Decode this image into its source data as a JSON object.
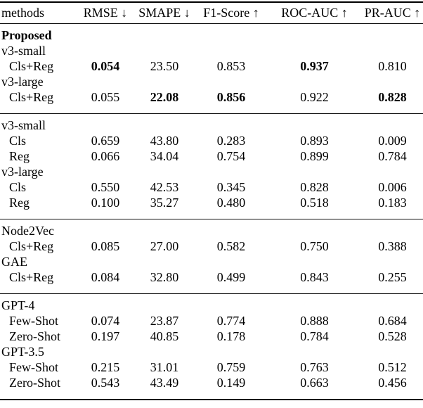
{
  "table": {
    "headers": [
      "methods",
      "RMSE ↓",
      "SMAPE ↓",
      "F1-Score ↑",
      "ROC-AUC ↑",
      "PR-AUC ↑"
    ],
    "sections": [
      {
        "rows": [
          {
            "label": "Proposed",
            "indent": false,
            "bold_label": true,
            "values": [],
            "bold": []
          },
          {
            "label": "v3-small",
            "indent": false,
            "bold_label": false,
            "values": [],
            "bold": []
          },
          {
            "label": "Cls+Reg",
            "indent": true,
            "bold_label": false,
            "values": [
              "0.054",
              "23.50",
              "0.853",
              "0.937",
              "0.810"
            ],
            "bold": [
              0,
              3
            ]
          },
          {
            "label": "v3-large",
            "indent": false,
            "bold_label": false,
            "values": [],
            "bold": []
          },
          {
            "label": "Cls+Reg",
            "indent": true,
            "bold_label": false,
            "values": [
              "0.055",
              "22.08",
              "0.856",
              "0.922",
              "0.828"
            ],
            "bold": [
              1,
              2,
              4
            ]
          }
        ]
      },
      {
        "rows": [
          {
            "label": "v3-small",
            "indent": false,
            "bold_label": false,
            "values": [],
            "bold": []
          },
          {
            "label": "Cls",
            "indent": true,
            "bold_label": false,
            "values": [
              "0.659",
              "43.80",
              "0.283",
              "0.893",
              "0.009"
            ],
            "bold": []
          },
          {
            "label": "Reg",
            "indent": true,
            "bold_label": false,
            "values": [
              "0.066",
              "34.04",
              "0.754",
              "0.899",
              "0.784"
            ],
            "bold": []
          },
          {
            "label": "v3-large",
            "indent": false,
            "bold_label": false,
            "values": [],
            "bold": []
          },
          {
            "label": "Cls",
            "indent": true,
            "bold_label": false,
            "values": [
              "0.550",
              "42.53",
              "0.345",
              "0.828",
              "0.006"
            ],
            "bold": []
          },
          {
            "label": "Reg",
            "indent": true,
            "bold_label": false,
            "values": [
              "0.100",
              "35.27",
              "0.480",
              "0.518",
              "0.183"
            ],
            "bold": []
          }
        ]
      },
      {
        "rows": [
          {
            "label": "Node2Vec",
            "indent": false,
            "bold_label": false,
            "values": [],
            "bold": []
          },
          {
            "label": "Cls+Reg",
            "indent": true,
            "bold_label": false,
            "values": [
              "0.085",
              "27.00",
              "0.582",
              "0.750",
              "0.388"
            ],
            "bold": []
          },
          {
            "label": "GAE",
            "indent": false,
            "bold_label": false,
            "values": [],
            "bold": []
          },
          {
            "label": "Cls+Reg",
            "indent": true,
            "bold_label": false,
            "values": [
              "0.084",
              "32.80",
              "0.499",
              "0.843",
              "0.255"
            ],
            "bold": []
          }
        ]
      },
      {
        "rows": [
          {
            "label": "GPT-4",
            "indent": false,
            "bold_label": false,
            "values": [],
            "bold": []
          },
          {
            "label": "Few-Shot",
            "indent": true,
            "bold_label": false,
            "values": [
              "0.074",
              "23.87",
              "0.774",
              "0.888",
              "0.684"
            ],
            "bold": []
          },
          {
            "label": "Zero-Shot",
            "indent": true,
            "bold_label": false,
            "values": [
              "0.197",
              "40.85",
              "0.178",
              "0.784",
              "0.528"
            ],
            "bold": []
          },
          {
            "label": "GPT-3.5",
            "indent": false,
            "bold_label": false,
            "values": [],
            "bold": []
          },
          {
            "label": "Few-Shot",
            "indent": true,
            "bold_label": false,
            "values": [
              "0.215",
              "31.01",
              "0.759",
              "0.763",
              "0.512"
            ],
            "bold": []
          },
          {
            "label": "Zero-Shot",
            "indent": true,
            "bold_label": false,
            "values": [
              "0.543",
              "43.49",
              "0.149",
              "0.663",
              "0.456"
            ],
            "bold": []
          }
        ]
      }
    ]
  }
}
